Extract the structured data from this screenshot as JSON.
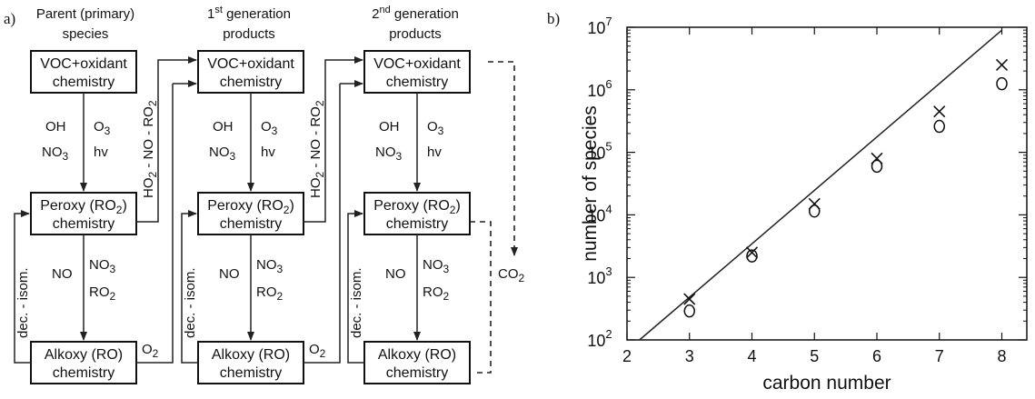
{
  "panel_a": {
    "label": "a)",
    "columns": [
      {
        "header_line1": "Parent (primary)",
        "header_line2": "species"
      },
      {
        "header_line1_base": "1",
        "header_line1_sup": "st",
        "header_line1_rest": " generation",
        "header_line2": "products"
      },
      {
        "header_line1_base": "2",
        "header_line1_sup": "nd",
        "header_line1_rest": " generation",
        "header_line2": "products"
      }
    ],
    "box_voc": {
      "line1": "VOC+oxidant",
      "line2": "chemistry"
    },
    "box_peroxy": {
      "line1_a": "Peroxy (RO",
      "line1_sub": "2",
      "line1_b": ")",
      "line2": "chemistry"
    },
    "box_alkoxy": {
      "line1": "Alkoxy (RO)",
      "line2": "chemistry"
    },
    "oxidants": {
      "oh": "OH",
      "o3_base": "O",
      "o3_sub": "3",
      "no3_base": "NO",
      "no3_sub": "3",
      "hv": "hv"
    },
    "peroxy_reactants": {
      "no": "NO",
      "no3_base": "NO",
      "no3_sub": "3",
      "ro2_base": "RO",
      "ro2_sub": "2"
    },
    "dec_isom": "dec. - isom.",
    "transfer_label": {
      "p1": "HO",
      "s1": "2",
      "p2": " - NO - RO",
      "s2": "2"
    },
    "o2": {
      "base": "O",
      "sub": "2"
    },
    "co2": {
      "base": "CO",
      "sub": "2"
    }
  },
  "chart_data": {
    "type": "scatter",
    "panel_label": "b)",
    "xlabel": "carbon number",
    "ylabel": "number of species",
    "yscale": "log",
    "xlim": [
      2,
      8.4
    ],
    "ylim": [
      100,
      10000000
    ],
    "xticks": [
      "2",
      "3",
      "4",
      "5",
      "6",
      "7",
      "8"
    ],
    "yticks": [
      {
        "value": 100,
        "base": "10",
        "exp": "2"
      },
      {
        "value": 1000,
        "base": "10",
        "exp": "3"
      },
      {
        "value": 10000,
        "base": "10",
        "exp": "4"
      },
      {
        "value": 100000,
        "base": "10",
        "exp": "5"
      },
      {
        "value": 1000000,
        "base": "10",
        "exp": "6"
      },
      {
        "value": 10000000,
        "base": "10",
        "exp": "7"
      }
    ],
    "series": [
      {
        "marker": "x",
        "points": [
          [
            3,
            450
          ],
          [
            4,
            2500
          ],
          [
            5,
            15000
          ],
          [
            6,
            80000
          ],
          [
            7,
            450000
          ],
          [
            8,
            2500000
          ]
        ]
      },
      {
        "marker": "o",
        "points": [
          [
            3,
            290
          ],
          [
            4,
            2200
          ],
          [
            5,
            11500
          ],
          [
            6,
            60000
          ],
          [
            7,
            260000
          ],
          [
            8,
            1250000
          ]
        ]
      }
    ],
    "trend_line": {
      "points": [
        [
          2.2,
          100
        ],
        [
          8,
          9000000
        ]
      ]
    }
  }
}
